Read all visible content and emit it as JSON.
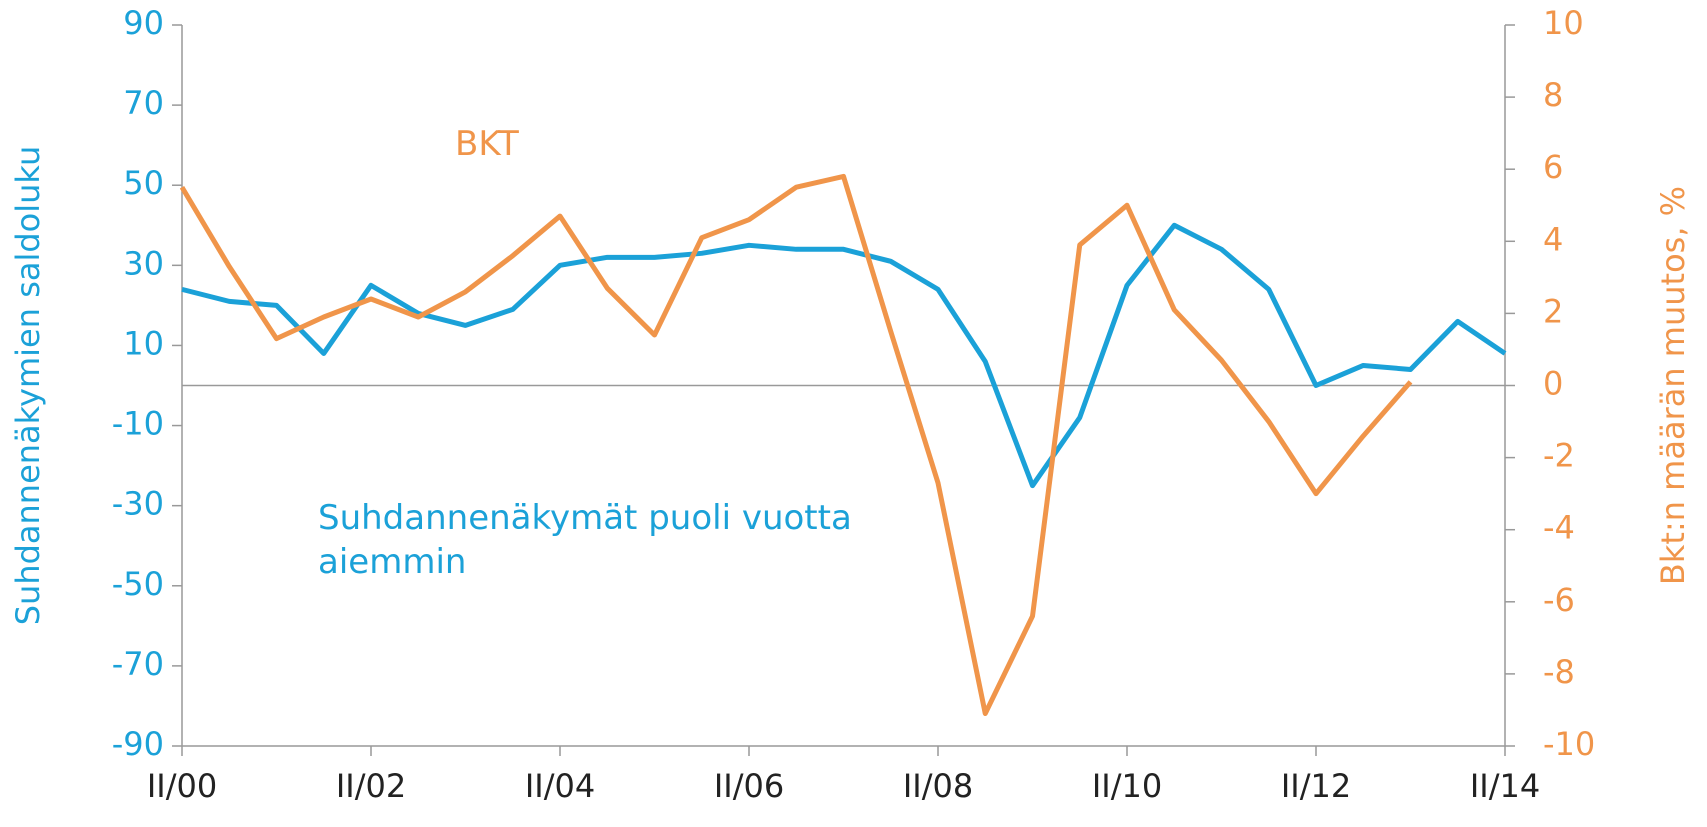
{
  "chart_data": {
    "type": "line",
    "categories": [
      "II/00",
      null,
      null,
      null,
      "II/02",
      null,
      null,
      null,
      "II/04",
      null,
      null,
      null,
      "II/06",
      null,
      null,
      null,
      "II/08",
      null,
      null,
      null,
      "II/10",
      null,
      null,
      null,
      "II/12",
      null,
      null,
      null,
      "II/14"
    ],
    "series": [
      {
        "name": "Suhdannenäkymät puoli vuotta aiemmin",
        "color": "#1ba1d8",
        "axis": "y",
        "values": [
          24,
          21,
          20,
          8,
          25,
          18,
          15,
          19,
          30,
          32,
          32,
          33,
          35,
          34,
          34,
          31,
          24,
          6,
          -25,
          -8,
          25,
          40,
          34,
          24,
          0,
          5,
          4,
          16,
          8
        ]
      },
      {
        "name": "BKT",
        "color": "#f0954a",
        "axis": "y2",
        "values": [
          5.5,
          3.3,
          1.3,
          1.9,
          2.4,
          1.9,
          2.6,
          3.6,
          4.7,
          2.7,
          1.4,
          4.1,
          4.6,
          5.5,
          5.8,
          1.5,
          -2.7,
          -9.1,
          -6.4,
          3.9,
          5.0,
          2.1,
          0.7,
          -1.0,
          -3.0,
          -1.4,
          0.1,
          null,
          null
        ]
      }
    ],
    "ylabel": "Suhdannenäkymien saldoluku",
    "y2label": "Bkt:n määrän muutos, %",
    "ylim": [
      -90,
      90
    ],
    "yticks": [
      -90,
      -70,
      -50,
      -30,
      -10,
      10,
      30,
      50,
      70,
      90
    ],
    "y2lim": [
      -10,
      10
    ],
    "y2ticks": [
      -10,
      -8,
      -6,
      -4,
      -2,
      0,
      2,
      4,
      6,
      8,
      10
    ]
  }
}
